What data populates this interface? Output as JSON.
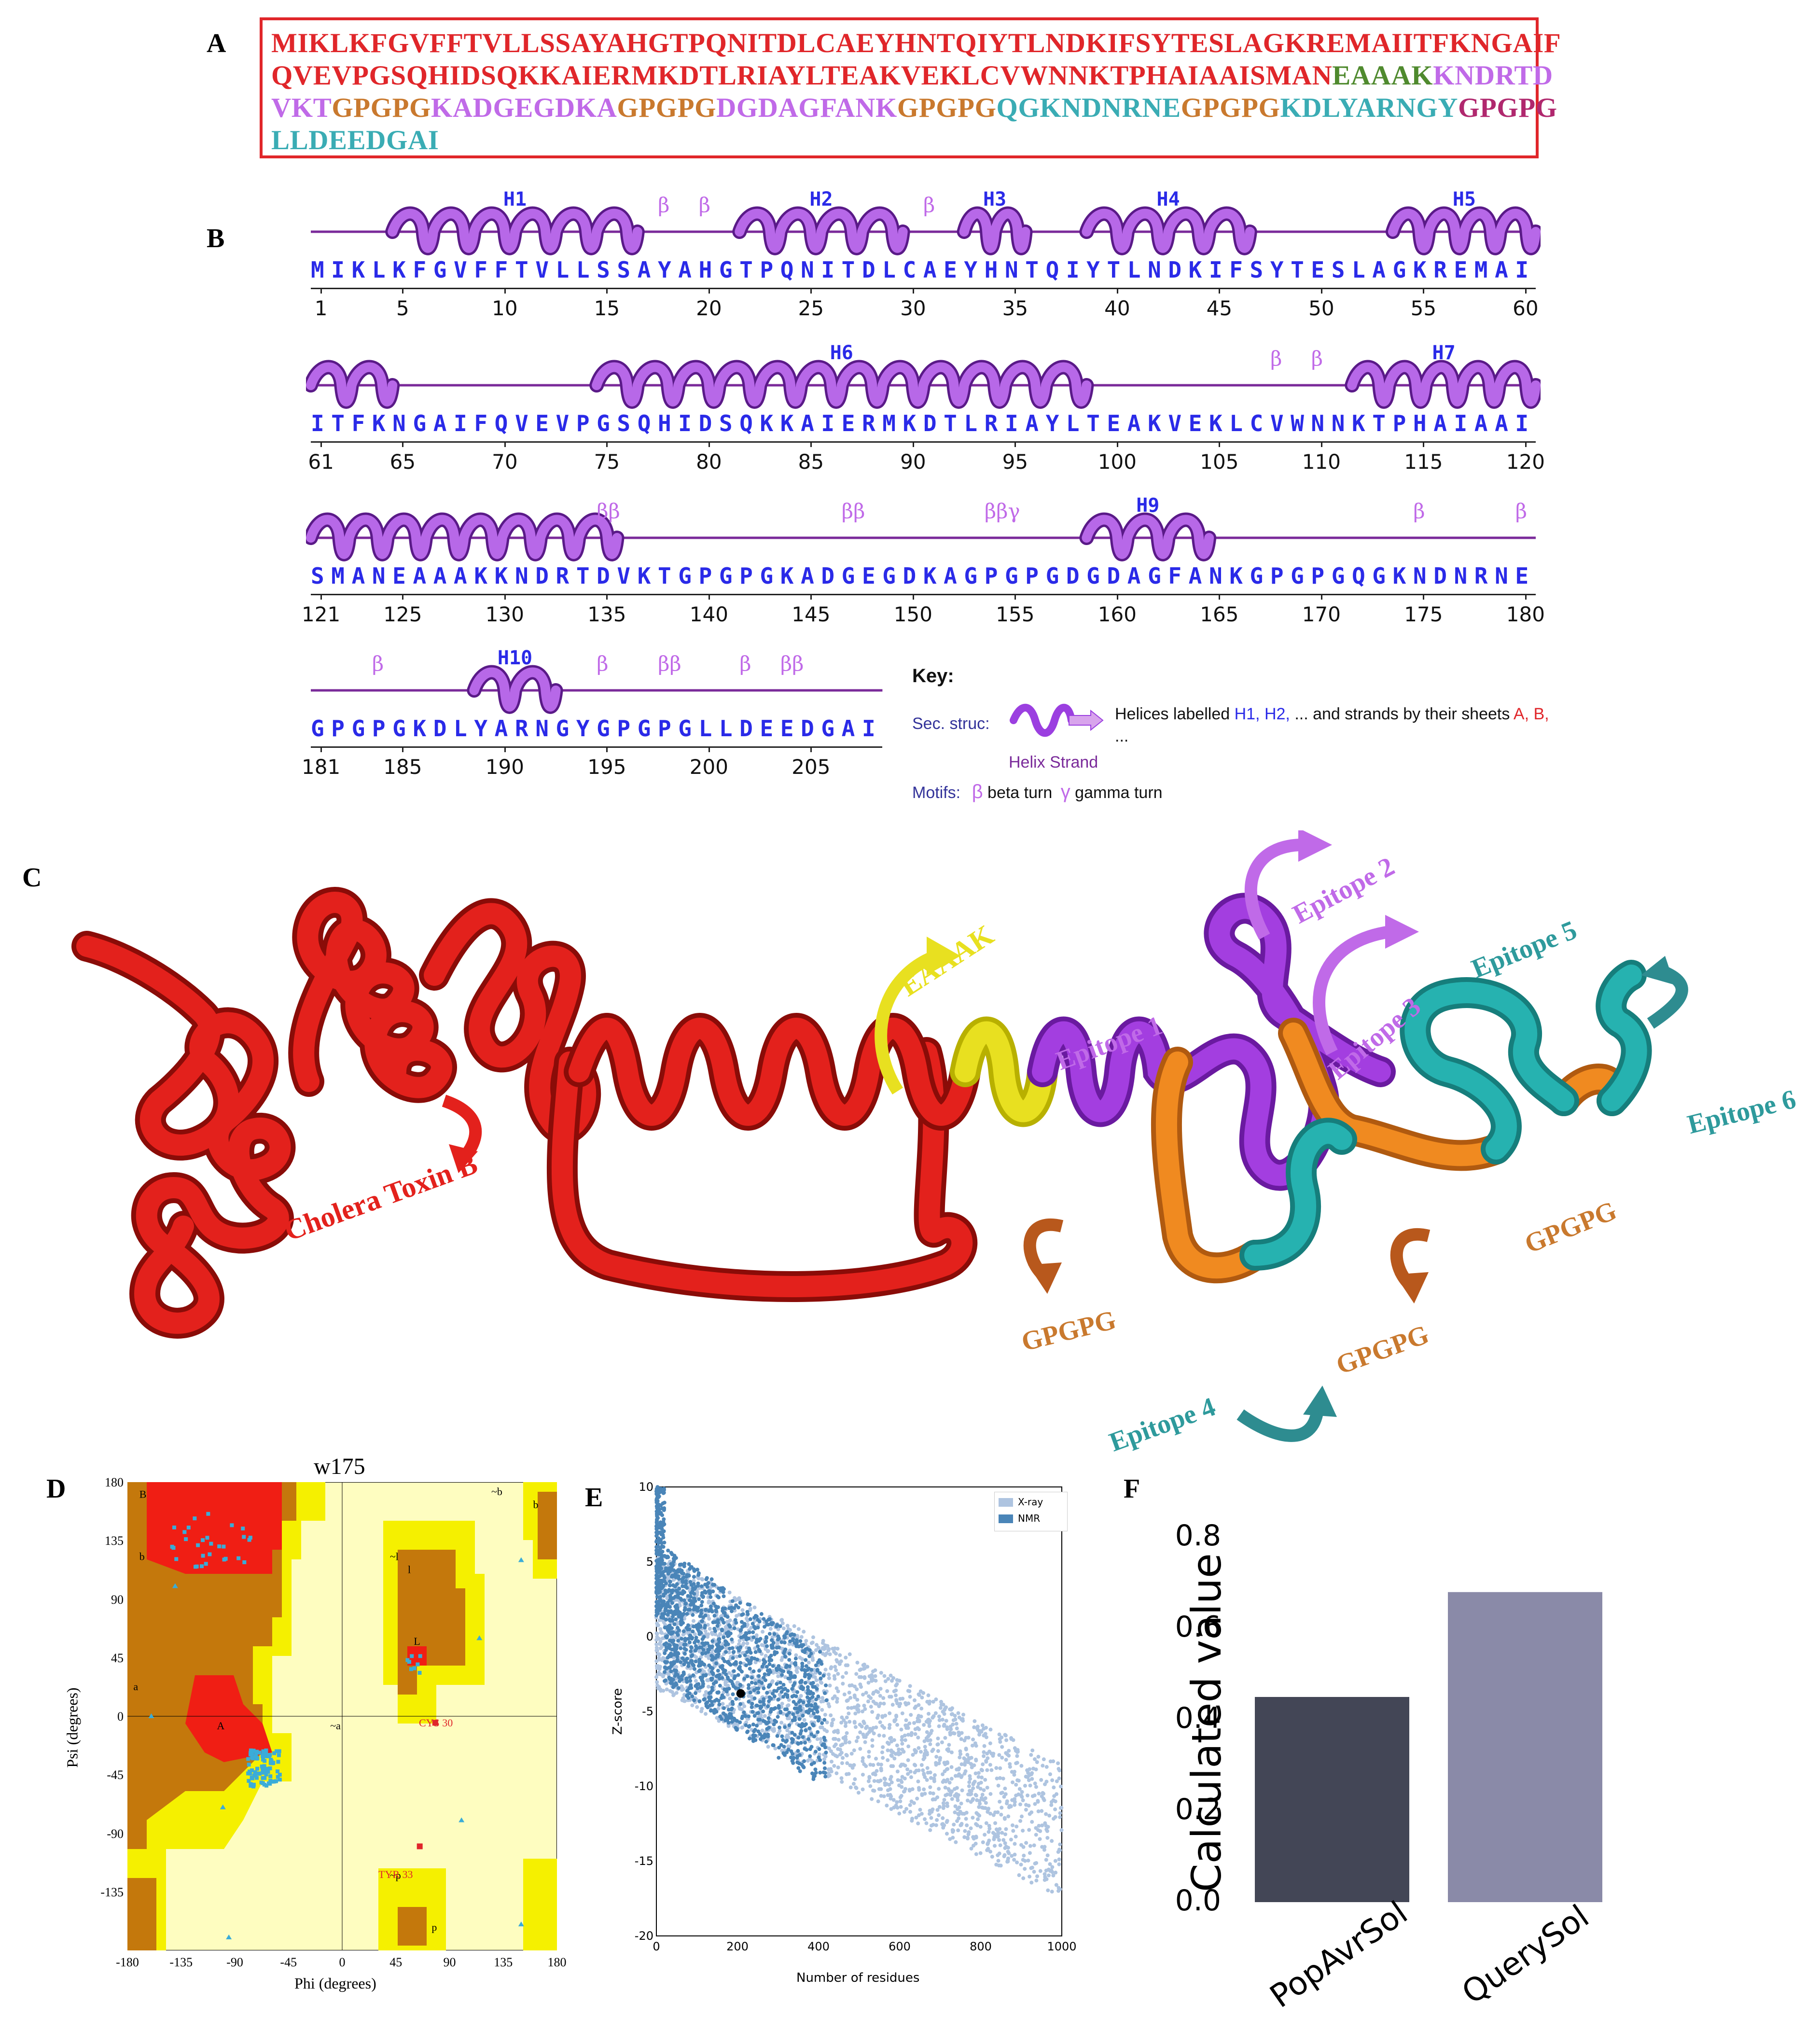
{
  "panels": {
    "a": "A",
    "b": "B",
    "c": "C",
    "d": "D",
    "e": "E",
    "f": "F"
  },
  "panelA": {
    "lines": [
      [
        {
          "text": "MIKLKFGVFFTVLLSSAYAHGTPQNITDLCAEYHNTQIYTLNDKIFSYTESLAGKREMAIITFKNGAIF",
          "color": "#e0262a"
        }
      ],
      [
        {
          "text": "QVEVPGSQHIDSQKKAIERMKDTLRIAYLTEAKVEKLCVWNNKTPHAIAAISMAN",
          "color": "#e0262a"
        },
        {
          "text": "EAAAK",
          "color": "#4f8a2e"
        },
        {
          "text": "KNDRTD",
          "color": "#c06ae8"
        }
      ],
      [
        {
          "text": "VKT",
          "color": "#c06ae8"
        },
        {
          "text": "GPGPG",
          "color": "#c9792e"
        },
        {
          "text": "KADGEGDKA",
          "color": "#c06ae8"
        },
        {
          "text": "GPGPG",
          "color": "#c9792e"
        },
        {
          "text": "DGDAGFANK",
          "color": "#c06ae8"
        },
        {
          "text": "GPGPG",
          "color": "#c9792e"
        },
        {
          "text": "QGKNDNRNE",
          "color": "#3aacb4"
        },
        {
          "text": "GPGPG",
          "color": "#c9792e"
        },
        {
          "text": "KDLYARNGY",
          "color": "#3aacb4"
        },
        {
          "text": "GPGPG",
          "color": "#b0286e"
        }
      ],
      [
        {
          "text": "LLDEEDGAI",
          "color": "#3aacb4"
        }
      ]
    ]
  },
  "panelB": {
    "rows": [
      {
        "seq": "MIKLKFGVFFTVLLSSAYAHGTPQNITDLCAEYHNTQIYTLNDKIFSYTESLAGKREMAI",
        "nums": [
          "1",
          "5",
          "10",
          "15",
          "20",
          "25",
          "30",
          "35",
          "40",
          "45",
          "50",
          "55",
          "60"
        ],
        "helices": [
          {
            "label": "H1",
            "start": 5,
            "end": 16
          },
          {
            "label": "H2",
            "start": 22,
            "end": 29
          },
          {
            "label": "H3",
            "start": 33,
            "end": 35
          },
          {
            "label": "H4",
            "start": 39,
            "end": 46
          },
          {
            "label": "H5",
            "start": 54,
            "end": 60
          }
        ],
        "betas": [
          {
            "pos": 18,
            "s": "β"
          },
          {
            "pos": 20,
            "s": "β"
          },
          {
            "pos": 31,
            "s": "β"
          }
        ]
      },
      {
        "seq": "ITFKNGAIFQVEVPGSQHIDSQKKAIERMKDTLRIAYLTEAKVEKLCVWNNKTPHAIAAI",
        "nums": [
          "61",
          "65",
          "70",
          "75",
          "80",
          "85",
          "90",
          "95",
          "100",
          "105",
          "110",
          "115",
          "120"
        ],
        "helices": [
          {
            "label": "",
            "start": 61,
            "end": 64
          },
          {
            "label": "H6",
            "start": 75,
            "end": 98
          },
          {
            "label": "H7",
            "start": 112,
            "end": 120
          }
        ],
        "betas": [
          {
            "pos": 108,
            "s": "β"
          },
          {
            "pos": 110,
            "s": "β"
          }
        ]
      },
      {
        "seq": "SMANEAAAKKNDRTDVKTGPGPGKADGEGDKAGPGPGDGDAGFANKGPGPGQGKNDNRNE",
        "nums": [
          "121",
          "125",
          "130",
          "135",
          "140",
          "145",
          "150",
          "155",
          "160",
          "165",
          "170",
          "175",
          "180"
        ],
        "helices": [
          {
            "label": "",
            "start": 121,
            "end": 135
          },
          {
            "label": "H9",
            "start": 159,
            "end": 164
          }
        ],
        "betas": [
          {
            "pos": 135,
            "s": "ββ"
          },
          {
            "pos": 147,
            "s": "ββ"
          },
          {
            "pos": 154,
            "s": "ββγ"
          },
          {
            "pos": 175,
            "s": "β"
          },
          {
            "pos": 180,
            "s": "β"
          }
        ]
      },
      {
        "seq": "GPGPGKDLYARNGYGPGPGLLDEEDGAI",
        "nums": [
          "181",
          "185",
          "190",
          "195",
          "200",
          "205"
        ],
        "helices": [
          {
            "label": "H10",
            "start": 189,
            "end": 192
          }
        ],
        "betas": [
          {
            "pos": 184,
            "s": "β"
          },
          {
            "pos": 195,
            "s": "β"
          },
          {
            "pos": 198,
            "s": "ββ"
          },
          {
            "pos": 202,
            "s": "β"
          },
          {
            "pos": 204,
            "s": "ββ"
          }
        ]
      }
    ],
    "key": {
      "title": "Key:",
      "sec_struc": "Sec. struc:",
      "helices_text_pre": "Helices labelled",
      "helices_h": "H1, H2,",
      "helices_text_mid": "... and strands by their sheets",
      "helices_ab": "A, B,",
      "ellipsis": "...",
      "helix_strand": "Helix Strand",
      "motifs": "Motifs:",
      "beta_sym": "β",
      "beta_turn": "beta turn",
      "gamma_sym": "γ",
      "gamma_turn": "gamma turn"
    }
  },
  "panelC": {
    "labels": {
      "ctb": "Cholera Toxin B",
      "eaaak": "EAAAK",
      "ep1": "Epitope 1",
      "ep2": "Epitope 2",
      "ep3": "Epitope 3",
      "ep4": "Epitope 4",
      "ep5": "Epitope 5",
      "ep6": "Epitope 6",
      "gp1": "GPGPG",
      "gp2": "GPGPG",
      "gp3": "GPGPG"
    },
    "colors": {
      "ctb": "#e3211c",
      "eaaak": "#e8e020",
      "epitope_purple": "#a33ee0",
      "epitope_teal": "#26b2b0",
      "linker": "#f08a20",
      "arrow_brown": "#b8581c",
      "arrow_teal": "#2e8c90"
    }
  },
  "panelD": {
    "title": "w175",
    "xlabel": "Phi (degrees)",
    "ylabel": "Psi (degrees)",
    "xticks": [
      "-180",
      "-135",
      "-90",
      "-45",
      "0",
      "45",
      "90",
      "135",
      "180"
    ],
    "yticks": [
      "180",
      "135",
      "90",
      "45",
      "0",
      "-45",
      "-90",
      "-135"
    ],
    "region_labels": [
      "B",
      "b",
      "a",
      "A",
      "L",
      "l",
      "~b",
      "~a",
      "~l",
      "~p",
      "p",
      "b"
    ],
    "outliers": [
      "TYR 33",
      "CYS 30"
    ]
  },
  "chart_data": [
    {
      "type": "scatter",
      "title": "",
      "xlabel": "Number of residues",
      "ylabel": "Z-score",
      "xlim": [
        0,
        1000
      ],
      "ylim": [
        -20,
        10
      ],
      "xticks": [
        "0",
        "200",
        "400",
        "600",
        "800",
        "1000"
      ],
      "yticks": [
        "10",
        "5",
        "0",
        "-5",
        "-10",
        "-15",
        "-20"
      ],
      "legend": {
        "placement": "top-right",
        "entries": [
          "X-ray",
          "NMR"
        ]
      },
      "series": [
        {
          "name": "X-ray",
          "color": "#aec4e0"
        },
        {
          "name": "NMR",
          "color": "#4a85b8"
        }
      ],
      "highlight_point": {
        "x": 208,
        "y": -3.8
      }
    },
    {
      "type": "bar",
      "title": "",
      "ylabel": "Calculated value",
      "categories": [
        "PopAvrSol",
        "QuerySol"
      ],
      "values": [
        0.45,
        0.68
      ],
      "colors": [
        "#434656",
        "#8a8aa8"
      ],
      "ylim": [
        0,
        0.9
      ],
      "yticks": [
        "0.0",
        "0.2",
        "0.4",
        "0.6",
        "0.8"
      ]
    }
  ]
}
